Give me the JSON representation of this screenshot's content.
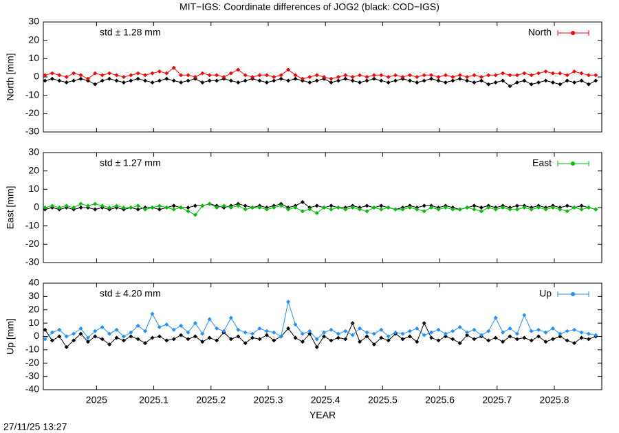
{
  "title": "MIT−IGS: Coordinate differences of JOG2 (black: COD−IGS)",
  "footer": "27/11/25 13:27",
  "chart_data": {
    "type": "line",
    "xlabel": "YEAR",
    "xlim": [
      2024.907,
      2025.883
    ],
    "xticks": [
      2025,
      2025.1,
      2025.2,
      2025.3,
      2025.4,
      2025.5,
      2025.6,
      2025.7,
      2025.8
    ],
    "x": [
      2024.91,
      2024.9225,
      2024.935,
      2024.9475,
      2024.96,
      2024.9725,
      2024.985,
      2024.9975,
      2025.01,
      2025.0225,
      2025.035,
      2025.0475,
      2025.06,
      2025.0725,
      2025.085,
      2025.0975,
      2025.11,
      2025.1225,
      2025.135,
      2025.1475,
      2025.16,
      2025.1725,
      2025.185,
      2025.1975,
      2025.21,
      2025.2225,
      2025.235,
      2025.2475,
      2025.26,
      2025.2725,
      2025.285,
      2025.2975,
      2025.31,
      2025.3225,
      2025.335,
      2025.3475,
      2025.36,
      2025.3725,
      2025.385,
      2025.3975,
      2025.41,
      2025.4225,
      2025.435,
      2025.4475,
      2025.46,
      2025.4725,
      2025.485,
      2025.4975,
      2025.51,
      2025.5225,
      2025.535,
      2025.5475,
      2025.56,
      2025.5725,
      2025.585,
      2025.5975,
      2025.61,
      2025.6225,
      2025.635,
      2025.6475,
      2025.66,
      2025.6725,
      2025.685,
      2025.6975,
      2025.71,
      2025.7225,
      2025.735,
      2025.7475,
      2025.76,
      2025.7725,
      2025.785,
      2025.7975,
      2025.81,
      2025.8225,
      2025.835,
      2025.8475,
      2025.86,
      2025.8725
    ],
    "panels": [
      {
        "ylabel": "North [mm]",
        "ylim": [
          -30,
          30
        ],
        "yticks": [
          -30,
          -20,
          -10,
          0,
          10,
          20,
          30
        ],
        "annotation": "std ± 1.28 mm",
        "series": [
          {
            "color": "#000000",
            "values": [
              -2,
              -1,
              -2,
              -3,
              -2,
              -1,
              -2,
              -4,
              -2,
              -1,
              -2,
              -3,
              -2,
              -1,
              -2,
              -3,
              -2,
              -1,
              -2,
              -3,
              -2,
              -1,
              -3,
              -2,
              -2,
              -1,
              -2,
              -3,
              -2,
              -1,
              -2,
              -3,
              -2,
              -1,
              -2,
              -1,
              -2,
              -3,
              -2,
              -1,
              -3,
              -2,
              -1,
              -2,
              -3,
              -2,
              -1,
              -2,
              -3,
              -2,
              -1,
              -2,
              -3,
              -2,
              -1,
              -2,
              -3,
              -2,
              -1,
              -2,
              -3,
              -2,
              -4,
              -3,
              -2,
              -5,
              -3,
              -2,
              -4,
              -3,
              -2,
              -3,
              -4,
              -2,
              -3,
              -2,
              -4,
              -2
            ]
          },
          {
            "name": "North",
            "color": "#ff0000",
            "values": [
              1,
              2,
              1,
              0,
              2,
              1,
              -1,
              2,
              1,
              2,
              1,
              0,
              1,
              2,
              1,
              2,
              3,
              2,
              5,
              1,
              1,
              0,
              2,
              1,
              1,
              0,
              2,
              4,
              1,
              0,
              1,
              1,
              0,
              1,
              4,
              1,
              -1,
              0,
              1,
              0,
              -1,
              0,
              1,
              0,
              1,
              0,
              1,
              1,
              0,
              1,
              0,
              1,
              0,
              1,
              1,
              0,
              1,
              0,
              1,
              0,
              1,
              0,
              1,
              1,
              2,
              1,
              1,
              2,
              1,
              2,
              3,
              2,
              2,
              1,
              3,
              2,
              1,
              1
            ]
          }
        ]
      },
      {
        "ylabel": "East [mm]",
        "ylim": [
          -30,
          30
        ],
        "yticks": [
          -30,
          -20,
          -10,
          0,
          10,
          20,
          30
        ],
        "annotation": "std ± 1.27 mm",
        "series": [
          {
            "color": "#000000",
            "values": [
              -1,
              0,
              -1,
              0,
              -1,
              0,
              0,
              -1,
              0,
              -1,
              0,
              -1,
              0,
              -1,
              0,
              0,
              -1,
              0,
              1,
              0,
              0,
              1,
              1,
              2,
              1,
              0,
              1,
              2,
              1,
              0,
              1,
              0,
              1,
              2,
              0,
              1,
              3,
              0,
              1,
              0,
              1,
              0,
              0,
              1,
              0,
              1,
              0,
              1,
              0,
              -1,
              0,
              1,
              0,
              1,
              1,
              0,
              1,
              0,
              -1,
              0,
              1,
              0,
              1,
              0,
              1,
              0,
              1,
              1,
              0,
              1,
              0,
              1,
              0,
              1,
              0,
              1,
              0,
              -1
            ]
          },
          {
            "name": "East",
            "color": "#00c000",
            "values": [
              0,
              1,
              0,
              1,
              0,
              2,
              1,
              2,
              1,
              0,
              1,
              0,
              0,
              1,
              -1,
              0,
              1,
              0,
              -1,
              0,
              -2,
              -4,
              1,
              2,
              0,
              1,
              0,
              1,
              -1,
              0,
              0,
              -1,
              0,
              1,
              -1,
              0,
              -2,
              -1,
              -3,
              0,
              -1,
              0,
              -1,
              0,
              -1,
              -2,
              0,
              -1,
              0,
              -1,
              -1,
              0,
              -1,
              -2,
              0,
              -1,
              0,
              -1,
              -1,
              0,
              -1,
              -2,
              0,
              -1,
              0,
              -1,
              -1,
              0,
              -1,
              0,
              -1,
              0,
              -1,
              -2,
              0,
              -1,
              0,
              -1
            ]
          }
        ]
      },
      {
        "ylabel": "Up [mm]",
        "ylim": [
          -40,
          40
        ],
        "yticks": [
          -40,
          -30,
          -20,
          -10,
          0,
          10,
          20,
          30,
          40
        ],
        "annotation": "std ± 4.20 mm",
        "series": [
          {
            "color": "#000000",
            "values": [
              5,
              -3,
              0,
              -8,
              -3,
              2,
              -4,
              0,
              -2,
              -6,
              -1,
              -3,
              0,
              -2,
              -5,
              -1,
              0,
              -3,
              -2,
              1,
              -2,
              0,
              -4,
              -1,
              -3,
              3,
              -2,
              0,
              -5,
              -1,
              -2,
              1,
              -3,
              0,
              6,
              -1,
              -4,
              2,
              -8,
              0,
              -3,
              -1,
              -2,
              10,
              -4,
              0,
              -6,
              -1,
              -3,
              2,
              -2,
              0,
              -4,
              10,
              -1,
              -3,
              0,
              -2,
              -5,
              1,
              -2,
              0,
              -3,
              -1,
              -4,
              0,
              -2,
              -1,
              -3,
              0,
              -4,
              -2,
              0,
              -3,
              -5,
              -1,
              -2,
              0
            ]
          },
          {
            "name": "Up",
            "color": "#1e90ff",
            "values": [
              -2,
              3,
              5,
              0,
              2,
              6,
              -1,
              4,
              7,
              2,
              5,
              0,
              3,
              8,
              4,
              17,
              7,
              9,
              5,
              8,
              3,
              10,
              2,
              13,
              6,
              4,
              14,
              5,
              3,
              2,
              6,
              4,
              3,
              0,
              26,
              9,
              2,
              4,
              -2,
              3,
              5,
              2,
              4,
              1,
              6,
              3,
              2,
              5,
              0,
              3,
              2,
              4,
              6,
              1,
              3,
              5,
              2,
              4,
              7,
              3,
              5,
              1,
              4,
              14,
              3,
              6,
              2,
              16,
              4,
              5,
              3,
              6,
              2,
              4,
              5,
              3,
              2,
              1
            ]
          }
        ]
      }
    ]
  }
}
